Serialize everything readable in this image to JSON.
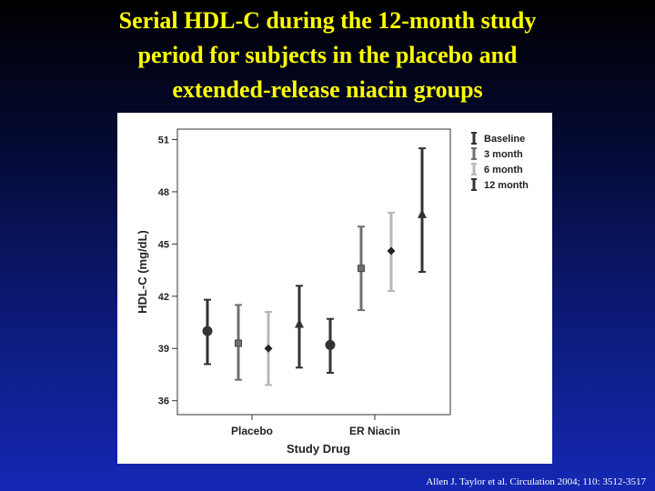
{
  "slide": {
    "title_lines": [
      "Serial HDL-C during the 12-month study",
      "period for subjects in the placebo and",
      "extended-release niacin groups"
    ],
    "citation": "Allen J. Taylor et al. Circulation 2004; 110: 3512-3517"
  },
  "colors": {
    "title": "#ffff00",
    "Baseline": "#333333",
    "3 month": "#707070",
    "6 month": "#b8b8b8",
    "12 month": "#333333"
  },
  "chart_data": {
    "type": "error-bar",
    "title": "",
    "xlabel": "Study Drug",
    "ylabel": "HDL-C (mg/dL)",
    "ylim": [
      35.2,
      51.6
    ],
    "yticks": [
      36,
      39,
      42,
      45,
      48,
      51
    ],
    "categories": [
      "Placebo",
      "ER Niacin"
    ],
    "legend_position": "top-right",
    "series": [
      {
        "name": "Baseline",
        "marker": "circle",
        "mean": [
          40.0,
          39.2
        ],
        "lower": [
          38.1,
          37.6
        ],
        "upper": [
          41.8,
          40.7
        ]
      },
      {
        "name": "3 month",
        "marker": "square",
        "mean": [
          39.3,
          43.6
        ],
        "lower": [
          37.2,
          41.2
        ],
        "upper": [
          41.5,
          46.0
        ]
      },
      {
        "name": "6 month",
        "marker": "diamond",
        "mean": [
          39.0,
          44.6
        ],
        "lower": [
          36.9,
          42.3
        ],
        "upper": [
          41.1,
          46.8
        ]
      },
      {
        "name": "12 month",
        "marker": "triangle",
        "mean": [
          40.4,
          46.7
        ],
        "lower": [
          37.9,
          43.4
        ],
        "upper": [
          42.6,
          50.5
        ]
      }
    ]
  }
}
